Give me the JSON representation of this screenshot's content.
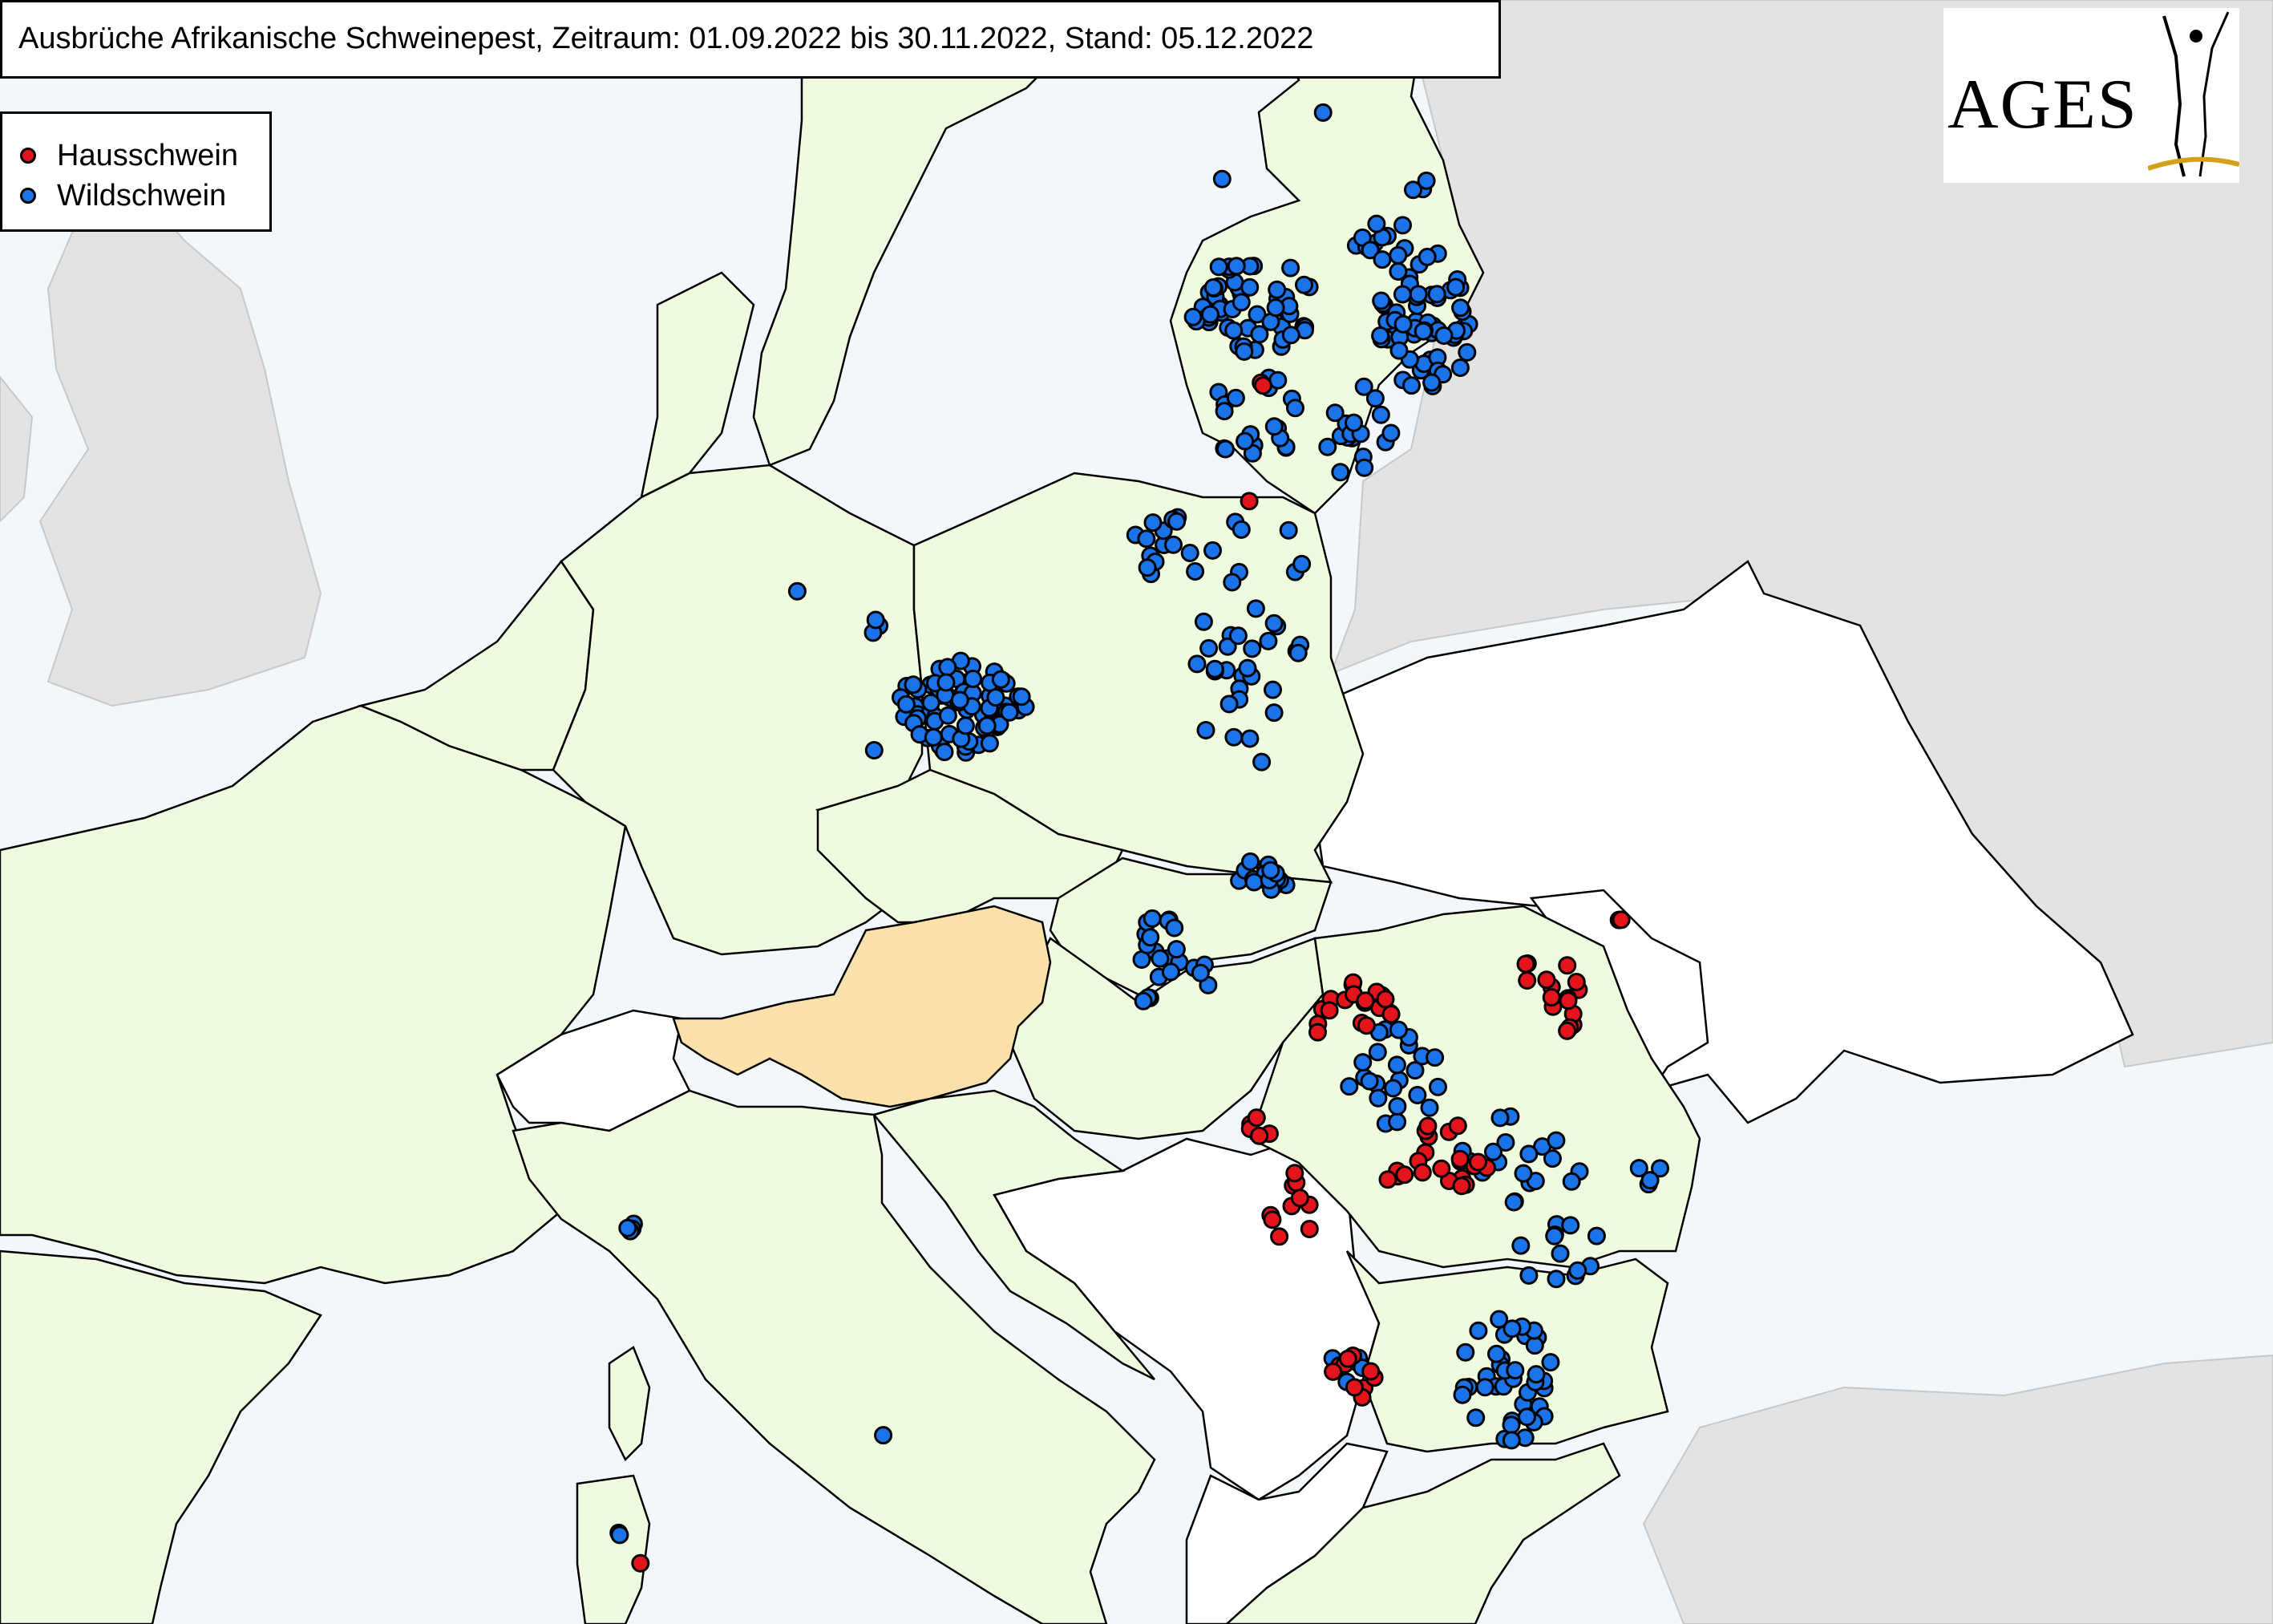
{
  "title": "Ausbrüche Afrikanische Schweinepest, Zeitraum: 01.09.2022 bis 30.11.2022, Stand: 05.12.2022",
  "legend": {
    "domestic": {
      "label": "Hausschwein",
      "color": "#e3141b"
    },
    "wild": {
      "label": "Wildschwein",
      "color": "#1a73e8"
    }
  },
  "logo": {
    "text": "AGES"
  },
  "colors": {
    "sea": "#f2f7fc",
    "affected_country": "#eefbdf",
    "austria": "#fbe0a9",
    "unaffected_country": "#ffffff",
    "non_eu": "#e3e3e3",
    "border": "#000000",
    "gold": "#d4a017"
  }
}
